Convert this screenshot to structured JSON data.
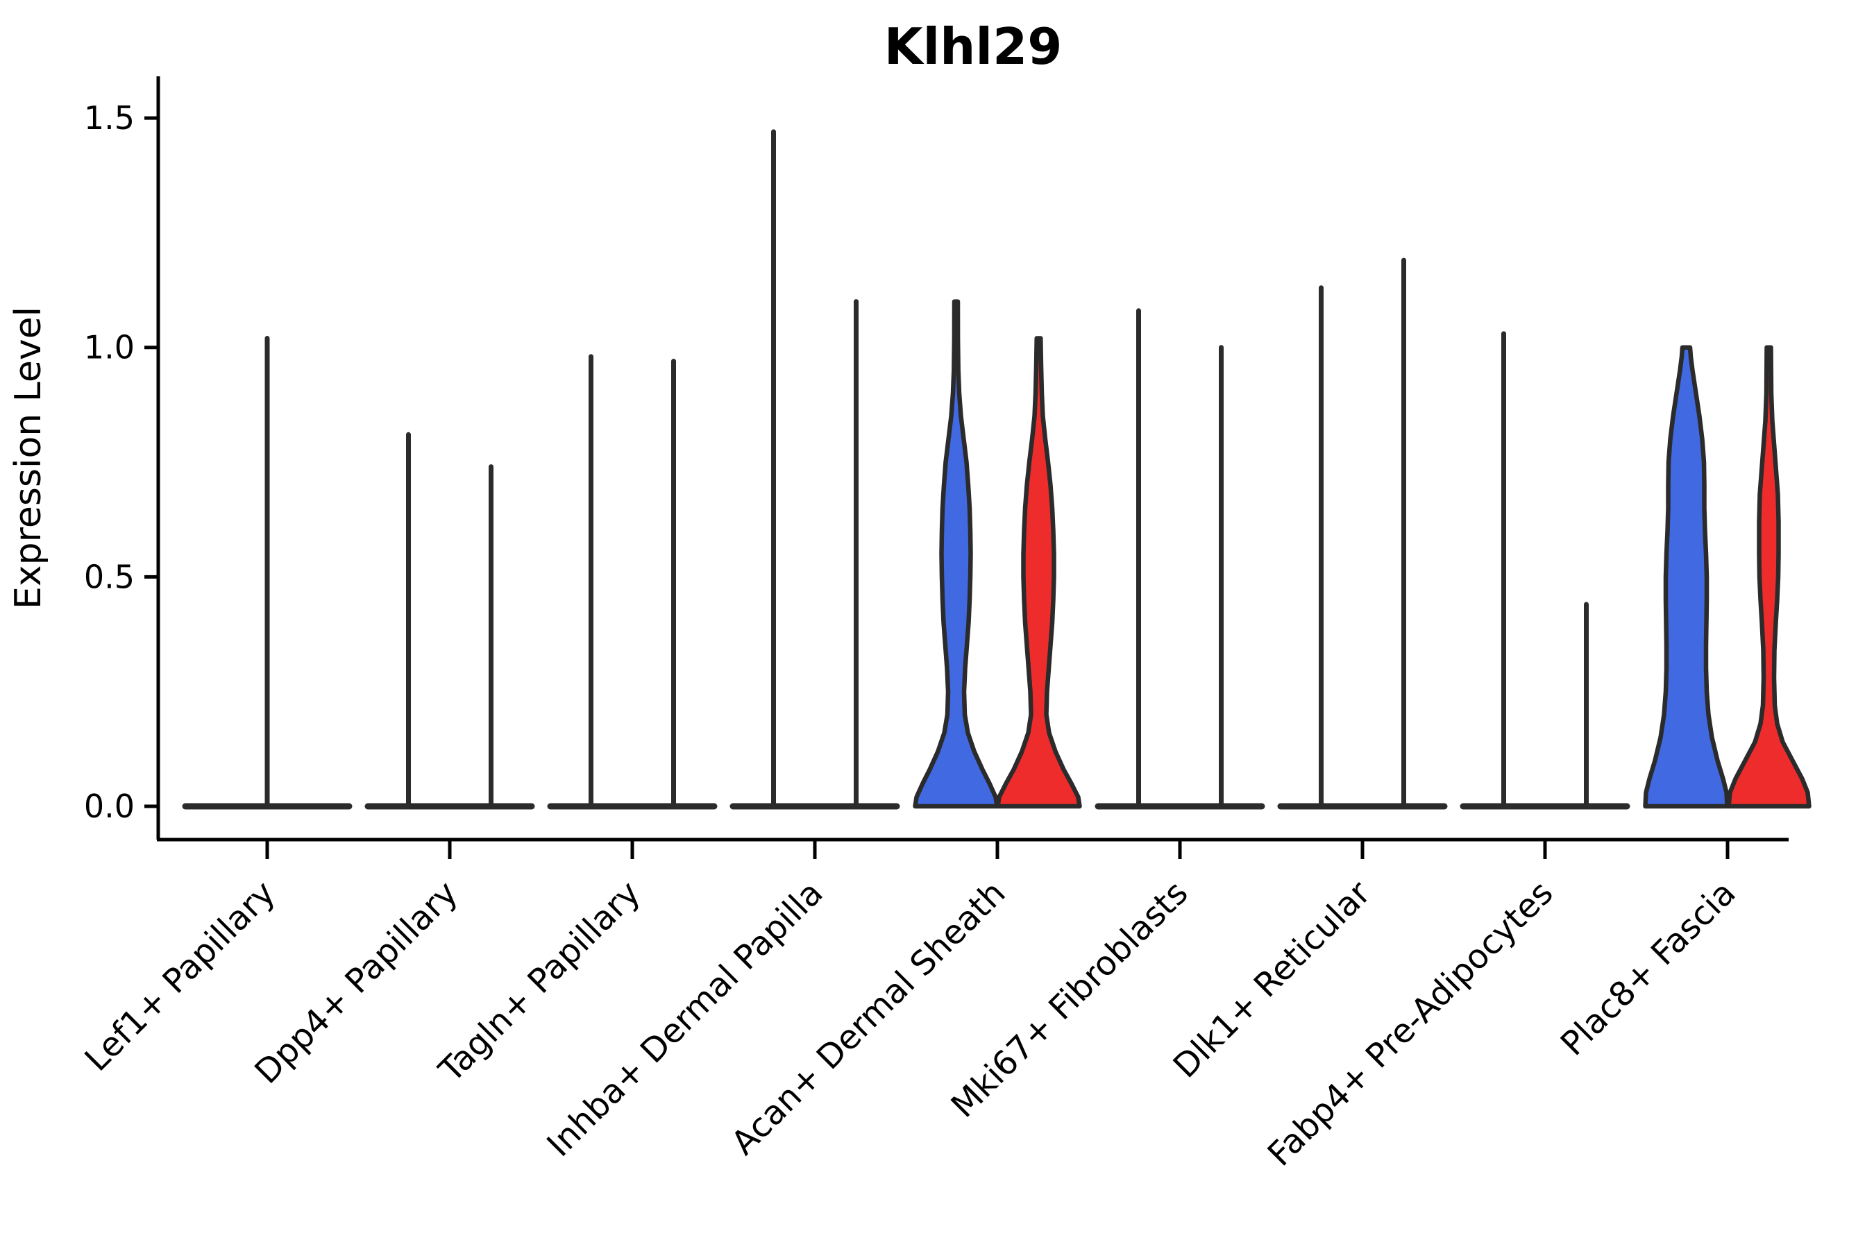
{
  "chart_data": {
    "type": "violin",
    "title": "Klhl29",
    "xlabel": "",
    "ylabel": "Expression Level",
    "grid": false,
    "legend": "none",
    "ylim": [
      -0.07,
      1.59
    ],
    "yticks": [
      {
        "value": 0.0,
        "label": "0.0"
      },
      {
        "value": 0.5,
        "label": "0.5"
      },
      {
        "value": 1.0,
        "label": "1.0"
      },
      {
        "value": 1.5,
        "label": "1.5"
      }
    ],
    "categories": [
      "Lef1+ Papillary",
      "Dpp4+ Papillary",
      "Tagln+ Papillary",
      "Inhba+ Dermal Papilla",
      "Acan+ Dermal Sheath",
      "Mki67+ Fibroblasts",
      "Dlk1+ Reticular",
      "Fabp4+ Pre-Adipocytes",
      "Plac8+ Fascia"
    ],
    "group_colors": {
      "blue": "#4169E1",
      "red": "#EE2C2C"
    },
    "outline_color": "#2B2B2B",
    "axis_color": "#000000",
    "violins": [
      {
        "category": "Lef1+ Papillary",
        "items": [
          {
            "side": "center",
            "style": "collapsed",
            "max": 1.02
          }
        ]
      },
      {
        "category": "Dpp4+ Papillary",
        "items": [
          {
            "side": "left",
            "style": "collapsed",
            "max": 0.81
          },
          {
            "side": "right",
            "style": "collapsed",
            "max": 0.74
          }
        ]
      },
      {
        "category": "Tagln+ Papillary",
        "items": [
          {
            "side": "left",
            "style": "collapsed",
            "max": 0.98
          },
          {
            "side": "right",
            "style": "collapsed",
            "max": 0.97
          }
        ]
      },
      {
        "category": "Inhba+ Dermal Papilla",
        "items": [
          {
            "side": "left",
            "style": "collapsed",
            "max": 1.47
          },
          {
            "side": "right",
            "style": "collapsed",
            "max": 1.1
          }
        ]
      },
      {
        "category": "Acan+ Dermal Sheath",
        "items": [
          {
            "side": "left",
            "style": "filled",
            "color": "blue",
            "max": 1.1,
            "profile": [
              [
                0.0,
                59
              ],
              [
                0.02,
                57
              ],
              [
                0.05,
                48
              ],
              [
                0.08,
                38
              ],
              [
                0.12,
                26
              ],
              [
                0.16,
                17
              ],
              [
                0.2,
                12.5
              ],
              [
                0.25,
                11.5
              ],
              [
                0.3,
                13
              ],
              [
                0.35,
                15.5
              ],
              [
                0.4,
                18
              ],
              [
                0.45,
                19.5
              ],
              [
                0.5,
                20.5
              ],
              [
                0.55,
                21
              ],
              [
                0.6,
                20.5
              ],
              [
                0.65,
                19.5
              ],
              [
                0.7,
                17.5
              ],
              [
                0.75,
                15
              ],
              [
                0.8,
                11
              ],
              [
                0.85,
                7
              ],
              [
                0.9,
                4.5
              ],
              [
                0.95,
                3.2
              ],
              [
                1.02,
                2.6
              ],
              [
                1.1,
                2.5
              ]
            ]
          },
          {
            "side": "right",
            "style": "filled",
            "color": "red",
            "max": 1.02,
            "profile": [
              [
                0.0,
                59
              ],
              [
                0.02,
                57
              ],
              [
                0.05,
                47
              ],
              [
                0.08,
                36
              ],
              [
                0.12,
                24
              ],
              [
                0.16,
                15
              ],
              [
                0.2,
                11
              ],
              [
                0.25,
                12
              ],
              [
                0.3,
                14.5
              ],
              [
                0.35,
                17
              ],
              [
                0.4,
                19.5
              ],
              [
                0.45,
                21
              ],
              [
                0.5,
                22
              ],
              [
                0.55,
                22
              ],
              [
                0.6,
                21
              ],
              [
                0.65,
                19.5
              ],
              [
                0.7,
                17
              ],
              [
                0.75,
                13.5
              ],
              [
                0.8,
                9.5
              ],
              [
                0.85,
                6
              ],
              [
                0.9,
                4.5
              ],
              [
                0.96,
                3.5
              ],
              [
                1.02,
                2.8
              ]
            ]
          }
        ]
      },
      {
        "category": "Mki67+ Fibroblasts",
        "items": [
          {
            "side": "left",
            "style": "collapsed",
            "max": 1.08
          },
          {
            "side": "right",
            "style": "collapsed",
            "max": 1.0
          }
        ]
      },
      {
        "category": "Dlk1+ Reticular",
        "items": [
          {
            "side": "left",
            "style": "collapsed",
            "max": 1.13
          },
          {
            "side": "right",
            "style": "collapsed",
            "max": 1.19
          }
        ]
      },
      {
        "category": "Fabp4+ Pre-Adipocytes",
        "items": [
          {
            "side": "left",
            "style": "collapsed",
            "max": 1.03
          },
          {
            "side": "right",
            "style": "collapsed",
            "max": 0.44
          }
        ]
      },
      {
        "category": "Plac8+ Fascia",
        "items": [
          {
            "side": "left",
            "style": "filled",
            "color": "blue",
            "max": 1.0,
            "profile": [
              [
                0.0,
                59
              ],
              [
                0.03,
                58
              ],
              [
                0.06,
                53
              ],
              [
                0.1,
                45
              ],
              [
                0.15,
                37
              ],
              [
                0.2,
                32
              ],
              [
                0.25,
                29.5
              ],
              [
                0.3,
                28.5
              ],
              [
                0.35,
                28.5
              ],
              [
                0.4,
                29
              ],
              [
                0.45,
                29.5
              ],
              [
                0.5,
                29.5
              ],
              [
                0.55,
                28.5
              ],
              [
                0.6,
                27
              ],
              [
                0.65,
                26
              ],
              [
                0.7,
                26
              ],
              [
                0.75,
                25.5
              ],
              [
                0.8,
                23
              ],
              [
                0.85,
                19
              ],
              [
                0.9,
                14
              ],
              [
                0.95,
                9
              ],
              [
                0.98,
                6.5
              ],
              [
                1.0,
                5.5
              ]
            ]
          },
          {
            "side": "right",
            "style": "filled",
            "color": "red",
            "max": 1.0,
            "profile": [
              [
                0.0,
                58
              ],
              [
                0.03,
                56
              ],
              [
                0.06,
                48
              ],
              [
                0.1,
                34
              ],
              [
                0.14,
                20
              ],
              [
                0.18,
                12
              ],
              [
                0.22,
                8.5
              ],
              [
                0.28,
                7.5
              ],
              [
                0.34,
                8
              ],
              [
                0.4,
                10
              ],
              [
                0.45,
                12
              ],
              [
                0.5,
                13.5
              ],
              [
                0.55,
                14
              ],
              [
                0.62,
                14
              ],
              [
                0.68,
                13
              ],
              [
                0.72,
                11
              ],
              [
                0.78,
                8
              ],
              [
                0.84,
                5
              ],
              [
                0.9,
                3.5
              ],
              [
                1.0,
                3
              ]
            ]
          }
        ]
      }
    ]
  }
}
